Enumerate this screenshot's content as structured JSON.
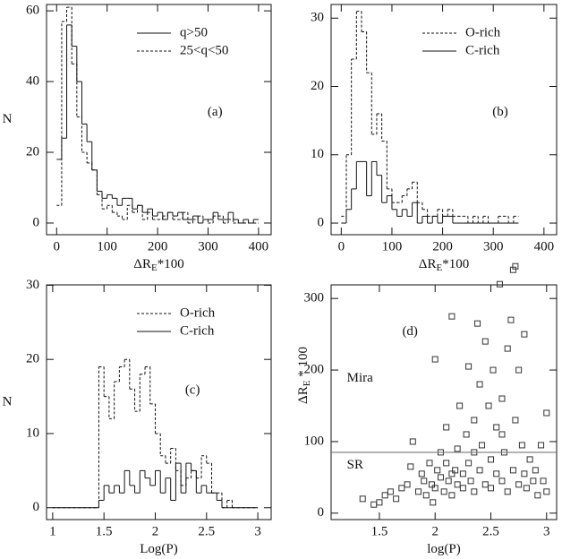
{
  "chart_data": [
    {
      "type": "histogram",
      "label": "(a)",
      "xlabel": [
        "ΔR",
        "E",
        "*100"
      ],
      "ylabel": "N",
      "bins": [
        0,
        10,
        20,
        30,
        40,
        50,
        60,
        70,
        80,
        90,
        100,
        110,
        120,
        130,
        140,
        150,
        160,
        170,
        180,
        190,
        200,
        210,
        220,
        230,
        240,
        250,
        260,
        270,
        280,
        290,
        300,
        310,
        320,
        330,
        340,
        350,
        360,
        370,
        380,
        390,
        400
      ],
      "series": [
        {
          "name": "q>50",
          "color": "#111111",
          "linestyle": "solid",
          "values": [
            18,
            24,
            56,
            50,
            40,
            28,
            23,
            15,
            9,
            7,
            8,
            7,
            5,
            7,
            7,
            4,
            5,
            3,
            4,
            2,
            3,
            1,
            3,
            2,
            3,
            1,
            1,
            2,
            0,
            1,
            1,
            3,
            1,
            1,
            3,
            1,
            0,
            1,
            0,
            1
          ]
        },
        {
          "name": "25<q<50",
          "color": "#111111",
          "linestyle": "dashed",
          "values": [
            5,
            57,
            61,
            45,
            30,
            20,
            17,
            15,
            8,
            4,
            5,
            3,
            2,
            1,
            5,
            3,
            5,
            1,
            3,
            1,
            1,
            2,
            3,
            1,
            1,
            3,
            0,
            1,
            2,
            1,
            0,
            2,
            2,
            0,
            1,
            0,
            0,
            0,
            0,
            0
          ]
        }
      ],
      "xlim": [
        -20,
        425
      ],
      "ylim": [
        -3.3,
        61.8
      ],
      "xticks": [
        0,
        100,
        200,
        300,
        400
      ],
      "yticks": [
        0,
        20,
        40,
        60
      ],
      "legend": "upper right"
    },
    {
      "type": "histogram",
      "label": "(b)",
      "xlabel": [
        "ΔR",
        "E",
        "*100"
      ],
      "bins": [
        0,
        10,
        20,
        30,
        40,
        50,
        60,
        70,
        80,
        90,
        100,
        110,
        120,
        130,
        140,
        150,
        160,
        170,
        180,
        190,
        200,
        210,
        220,
        230,
        240,
        250,
        260,
        270,
        280,
        290,
        300,
        310,
        320,
        330,
        340,
        350
      ],
      "series": [
        {
          "name": "O-rich",
          "color": "#111111",
          "linestyle": "dashed",
          "values": [
            1,
            10,
            24,
            31,
            28,
            22,
            13,
            16,
            12,
            5,
            3,
            3,
            4,
            5,
            6,
            3,
            2,
            1,
            1,
            2,
            1,
            2,
            1,
            1,
            1,
            0,
            1,
            0,
            1,
            0,
            0,
            1,
            1,
            0,
            1
          ]
        },
        {
          "name": "C-rich",
          "color": "#111111",
          "linestyle": "solid",
          "values": [
            0,
            2,
            5,
            9,
            9,
            4,
            9,
            7,
            3,
            4,
            2,
            1,
            2,
            1,
            3,
            0,
            1,
            0,
            1,
            0,
            1,
            1,
            0,
            0,
            0,
            0,
            0,
            0,
            0,
            0,
            0,
            0,
            0,
            0,
            0
          ]
        }
      ],
      "xlim": [
        -20,
        425
      ],
      "ylim": [
        -1.7,
        32
      ],
      "xticks": [
        0,
        100,
        200,
        300,
        400
      ],
      "yticks": [
        0,
        10,
        20,
        30
      ],
      "legend": "upper right"
    },
    {
      "type": "histogram",
      "label": "(c)",
      "xlabel": [
        "Log(P)"
      ],
      "ylabel": "N",
      "bins": [
        1,
        1.05,
        1.1,
        1.15,
        1.2,
        1.25,
        1.3,
        1.35,
        1.4,
        1.45,
        1.5,
        1.55,
        1.6,
        1.65,
        1.7,
        1.75,
        1.8,
        1.85,
        1.9,
        1.95,
        2,
        2.05,
        2.1,
        2.15,
        2.2,
        2.25,
        2.3,
        2.35,
        2.4,
        2.45,
        2.5,
        2.55,
        2.6,
        2.65,
        2.7,
        2.75,
        2.8,
        2.85,
        2.9,
        2.95,
        3
      ],
      "series": [
        {
          "name": "O-rich",
          "color": "#111111",
          "linestyle": "dashed",
          "values": [
            0,
            0,
            0,
            0,
            0,
            0,
            0,
            0,
            0,
            19,
            15,
            12,
            17,
            19,
            20,
            16,
            13,
            18,
            19,
            14,
            10,
            7,
            6,
            8,
            5,
            3,
            4,
            5,
            4,
            7,
            6,
            2,
            2,
            0,
            1,
            0,
            0,
            0,
            0,
            0
          ]
        },
        {
          "name": "C-rich",
          "color": "#111111",
          "linestyle": "solid",
          "values": [
            0,
            0,
            0,
            0,
            0,
            0,
            0,
            0,
            0,
            1,
            3,
            2,
            3,
            2,
            5,
            3,
            2,
            5,
            4,
            3,
            5,
            2,
            4,
            1,
            6,
            2,
            6,
            5,
            2,
            3,
            2,
            2,
            1,
            0,
            0,
            0,
            0,
            0,
            0,
            0
          ]
        }
      ],
      "xlim": [
        0.94,
        3.13
      ],
      "ylim": [
        -1.6,
        30.05
      ],
      "xticks": [
        1,
        1.5,
        2,
        2.5,
        3
      ],
      "yticks": [
        0,
        10,
        20,
        30
      ],
      "legend": "upper right"
    },
    {
      "type": "scatter",
      "label": "(d)",
      "xlabel": [
        "log(P)"
      ],
      "ylabel": [
        "ΔR",
        "E",
        " * 100"
      ],
      "color": "#333333",
      "x": [
        1.35,
        1.45,
        1.5,
        1.55,
        1.6,
        1.65,
        1.7,
        1.75,
        1.78,
        1.8,
        1.85,
        1.88,
        1.9,
        1.92,
        1.95,
        1.97,
        2.0,
        2.0,
        2.02,
        2.05,
        2.05,
        2.08,
        2.1,
        2.1,
        2.12,
        2.15,
        2.15,
        2.18,
        2.2,
        2.2,
        2.22,
        2.25,
        2.25,
        2.28,
        2.3,
        2.3,
        2.32,
        2.35,
        2.35,
        2.38,
        2.4,
        2.4,
        2.42,
        2.45,
        2.45,
        2.48,
        2.5,
        2.5,
        2.52,
        2.55,
        2.55,
        2.58,
        2.6,
        2.6,
        2.62,
        2.65,
        2.65,
        2.68,
        2.7,
        2.7,
        2.72,
        2.72,
        2.75,
        2.75,
        2.78,
        2.8,
        2.8,
        2.82,
        2.85,
        2.88,
        2.9,
        2.92,
        2.95,
        2.97,
        3.0,
        3.0,
        2.6,
        2.35,
        2.15,
        1.98
      ],
      "y": [
        20,
        12,
        15,
        25,
        30,
        20,
        35,
        40,
        65,
        100,
        30,
        55,
        45,
        25,
        70,
        40,
        215,
        35,
        60,
        50,
        85,
        30,
        120,
        70,
        45,
        275,
        25,
        60,
        90,
        40,
        150,
        55,
        35,
        110,
        205,
        70,
        45,
        130,
        30,
        265,
        180,
        60,
        95,
        240,
        40,
        150,
        75,
        35,
        200,
        120,
        55,
        320,
        160,
        45,
        85,
        230,
        30,
        270,
        340,
        60,
        345,
        130,
        200,
        40,
        95,
        250,
        55,
        35,
        75,
        45,
        60,
        25,
        95,
        45,
        140,
        30,
        110,
        85,
        55,
        15
      ],
      "hline": 85,
      "annotations": [
        "Mira",
        "SR"
      ],
      "xlim": [
        1.067,
        3.09
      ],
      "ylim": [
        -9,
        319
      ],
      "xticks": [
        1.5,
        2,
        2.5,
        3
      ],
      "yticks": [
        0,
        100,
        200,
        300
      ]
    }
  ]
}
